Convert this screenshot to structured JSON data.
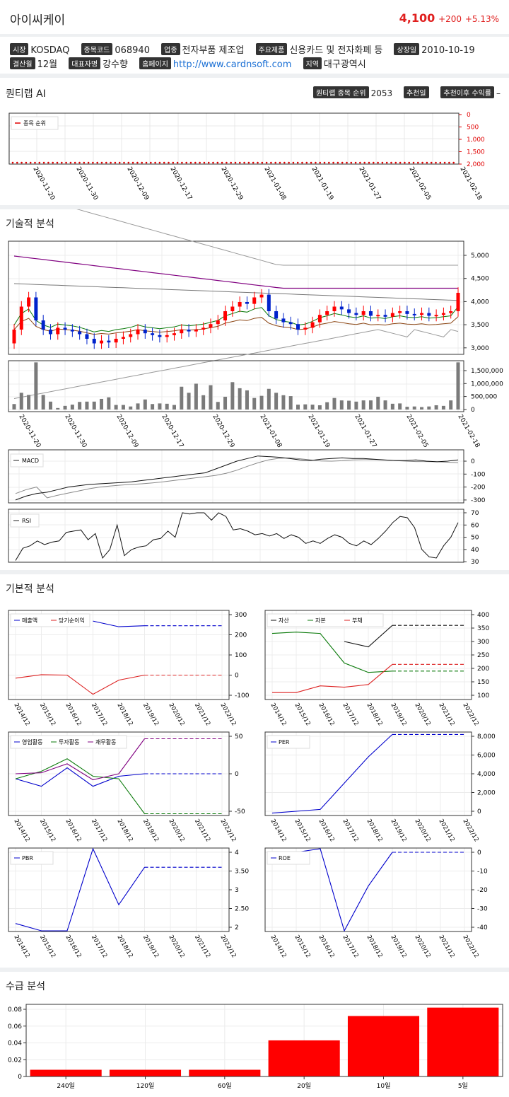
{
  "header": {
    "name": "아이씨케이",
    "price": "4,100",
    "change": "+200",
    "pct": "+5.13%"
  },
  "info": {
    "market_label": "시장",
    "market": "KOSDAQ",
    "code_label": "종목코드",
    "code": "068940",
    "sector_label": "업종",
    "sector": "전자부품 제조업",
    "product_label": "주요제품",
    "product": "신용카드 및 전자화폐 등",
    "listed_label": "상장일",
    "listed": "2010-10-19",
    "fiscal_label": "결산월",
    "fiscal": "12월",
    "ceo_label": "대표자명",
    "ceo": "강수향",
    "homepage_label": "홈페이지",
    "homepage": "http://www.cardnsoft.com",
    "region_label": "지역",
    "region": "대구광역시"
  },
  "quantilab": {
    "title": "퀀티랩 AI",
    "rank_label": "퀀티랩 종목 순위",
    "rank": "2053",
    "rec_label": "추천일",
    "ret_label": "추천이후 수익률",
    "ret": "–",
    "legend": "종목 순위",
    "yticks": [
      "0",
      "500",
      "1,000",
      "1,500",
      "2,000"
    ]
  },
  "dates": [
    "2020-11-20",
    "2020-11-30",
    "2020-12-09",
    "2020-12-17",
    "2020-12-29",
    "2021-01-08",
    "2021-01-19",
    "2021-01-27",
    "2021-02-05",
    "2021-02-18"
  ],
  "technical": {
    "title": "기술적 분석",
    "price_ticks": [
      "5,000",
      "4,500",
      "4,000",
      "3,500",
      "3,000"
    ],
    "volume_ticks": [
      "1,500,000",
      "1,000,000",
      "500,000",
      "0"
    ],
    "macd_label": "MACD",
    "macd_ticks": [
      "0",
      "-100",
      "-200",
      "-300"
    ],
    "rsi_label": "RSI",
    "rsi_ticks": [
      "70",
      "60",
      "50",
      "40",
      "30"
    ]
  },
  "fundamental": {
    "title": "기본적 분석",
    "years": [
      "2014/12",
      "2015/12",
      "2016/12",
      "2017/12",
      "2018/12",
      "2019/12",
      "2020/12",
      "2021/12",
      "2022/12"
    ],
    "c1": {
      "legend": [
        "매출액",
        "당기순이익"
      ],
      "ticks": [
        "300",
        "200",
        "100",
        "0",
        "-100"
      ]
    },
    "c2": {
      "legend": [
        "자산",
        "자본",
        "부채"
      ],
      "ticks": [
        "400",
        "350",
        "300",
        "250",
        "200",
        "150",
        "100"
      ]
    },
    "c3": {
      "legend": [
        "영업활동",
        "투자활동",
        "재무활동"
      ],
      "ticks": [
        "50",
        "0",
        "-50"
      ]
    },
    "c4": {
      "legend": [
        "PER"
      ],
      "ticks": [
        "8,000",
        "6,000",
        "4,000",
        "2,000",
        "0"
      ]
    },
    "c5": {
      "legend": [
        "PBR"
      ],
      "ticks": [
        "4",
        "3.50",
        "3",
        "2.50",
        "2"
      ]
    },
    "c6": {
      "legend": [
        "ROE"
      ],
      "ticks": [
        "0",
        "-10",
        "-20",
        "-30",
        "-40"
      ]
    }
  },
  "supply": {
    "title": "수급 분석"
  },
  "chart_data": {
    "type": "bar",
    "categories": [
      "240일",
      "120일",
      "60일",
      "20일",
      "10일",
      "5일"
    ],
    "values": [
      0.008,
      0.008,
      0.008,
      0.043,
      0.072,
      0.082
    ],
    "ylim": [
      0,
      0.085
    ],
    "yticks": [
      "0.08",
      "0.06",
      "0.04",
      "0.02",
      "0"
    ],
    "color": "#ff0000"
  },
  "colors": {
    "up": "#ff0000",
    "down": "#0022cc",
    "accent": "#e0201f",
    "link": "#1a6fd4"
  }
}
